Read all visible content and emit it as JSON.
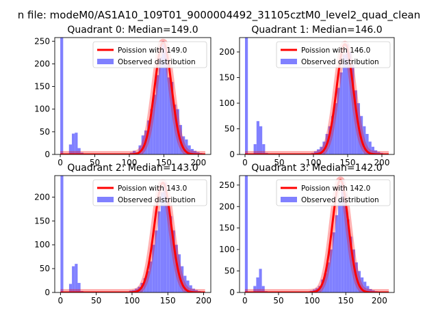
{
  "figure_title": "n file: modeM0/AS1A10_109T01_9000004492_31105cztM0_level2_quad_clean",
  "colors": {
    "hist": "#8080ff",
    "fit": "#ff0000",
    "fit_band": "#ffb3b3"
  },
  "chart_data": [
    {
      "type": "bar",
      "title": "Quadrant 0: Median=149.0",
      "xlabel": "",
      "ylabel": "",
      "xlim": [
        -8,
        218
      ],
      "ylim": [
        0,
        258
      ],
      "xticks": [
        0,
        50,
        100,
        150,
        200
      ],
      "yticks": [
        0,
        50,
        100,
        150,
        200,
        250
      ],
      "bin_width": 4.2,
      "legend": {
        "location": "top-right",
        "fit_label": "Poission with 149.0",
        "hist_label": "Observed distribution"
      },
      "poisson_mean": 149.0,
      "poisson_peak": 248,
      "histogram": [
        {
          "x": 0,
          "count": 258
        },
        {
          "x": 4.2,
          "count": 0
        },
        {
          "x": 8.4,
          "count": 0
        },
        {
          "x": 12.6,
          "count": 22
        },
        {
          "x": 16.8,
          "count": 46
        },
        {
          "x": 21.0,
          "count": 48
        },
        {
          "x": 25.2,
          "count": 14
        },
        {
          "x": 29.4,
          "count": 4
        },
        {
          "x": 100.8,
          "count": 4
        },
        {
          "x": 105.0,
          "count": 8
        },
        {
          "x": 109.2,
          "count": 5
        },
        {
          "x": 113.4,
          "count": 20
        },
        {
          "x": 117.6,
          "count": 42
        },
        {
          "x": 121.8,
          "count": 53
        },
        {
          "x": 126.0,
          "count": 75
        },
        {
          "x": 130.2,
          "count": 100
        },
        {
          "x": 134.4,
          "count": 132
        },
        {
          "x": 138.6,
          "count": 175
        },
        {
          "x": 142.8,
          "count": 215
        },
        {
          "x": 147.0,
          "count": 250
        },
        {
          "x": 151.2,
          "count": 230
        },
        {
          "x": 155.4,
          "count": 170
        },
        {
          "x": 159.6,
          "count": 160
        },
        {
          "x": 163.8,
          "count": 110
        },
        {
          "x": 168.0,
          "count": 100
        },
        {
          "x": 172.2,
          "count": 65
        },
        {
          "x": 176.4,
          "count": 40
        },
        {
          "x": 180.6,
          "count": 33
        },
        {
          "x": 184.8,
          "count": 20
        },
        {
          "x": 189.0,
          "count": 12
        },
        {
          "x": 193.2,
          "count": 8
        },
        {
          "x": 197.4,
          "count": 5
        },
        {
          "x": 201.6,
          "count": 3
        },
        {
          "x": 205.8,
          "count": 1
        }
      ]
    },
    {
      "type": "bar",
      "title": "Quadrant 1: Median=146.0",
      "xlabel": "",
      "ylabel": "",
      "xlim": [
        -8,
        218
      ],
      "ylim": [
        0,
        228
      ],
      "xticks": [
        0,
        50,
        100,
        150,
        200
      ],
      "yticks": [
        0,
        50,
        100,
        150,
        200
      ],
      "bin_width": 4.2,
      "legend": {
        "location": "top-right",
        "fit_label": "Poission with 146.0",
        "hist_label": "Observed distribution"
      },
      "poisson_mean": 146.0,
      "poisson_peak": 215,
      "histogram": [
        {
          "x": 0,
          "count": 228
        },
        {
          "x": 4.2,
          "count": 0
        },
        {
          "x": 8.4,
          "count": 0
        },
        {
          "x": 12.6,
          "count": 20
        },
        {
          "x": 16.8,
          "count": 65
        },
        {
          "x": 21.0,
          "count": 55
        },
        {
          "x": 25.2,
          "count": 20
        },
        {
          "x": 29.4,
          "count": 3
        },
        {
          "x": 96.6,
          "count": 3
        },
        {
          "x": 100.8,
          "count": 6
        },
        {
          "x": 105.0,
          "count": 10
        },
        {
          "x": 109.2,
          "count": 15
        },
        {
          "x": 113.4,
          "count": 25
        },
        {
          "x": 117.6,
          "count": 40
        },
        {
          "x": 121.8,
          "count": 55
        },
        {
          "x": 126.0,
          "count": 75
        },
        {
          "x": 130.2,
          "count": 100
        },
        {
          "x": 134.4,
          "count": 130
        },
        {
          "x": 138.6,
          "count": 160
        },
        {
          "x": 142.8,
          "count": 195
        },
        {
          "x": 147.0,
          "count": 215
        },
        {
          "x": 151.2,
          "count": 200
        },
        {
          "x": 155.4,
          "count": 175
        },
        {
          "x": 159.6,
          "count": 125
        },
        {
          "x": 163.8,
          "count": 100
        },
        {
          "x": 168.0,
          "count": 75
        },
        {
          "x": 172.2,
          "count": 55
        },
        {
          "x": 176.4,
          "count": 40
        },
        {
          "x": 180.6,
          "count": 25
        },
        {
          "x": 184.8,
          "count": 15
        },
        {
          "x": 189.0,
          "count": 8
        },
        {
          "x": 193.2,
          "count": 5
        },
        {
          "x": 197.4,
          "count": 3
        },
        {
          "x": 201.6,
          "count": 2
        }
      ]
    },
    {
      "type": "bar",
      "title": "Quadrant 2: Median=143.0",
      "xlabel": "",
      "ylabel": "",
      "xlim": [
        -8,
        210
      ],
      "ylim": [
        0,
        245
      ],
      "xticks": [
        0,
        50,
        100,
        150,
        200
      ],
      "yticks": [
        0,
        50,
        100,
        150,
        200
      ],
      "bin_width": 4.0,
      "legend": {
        "location": "top-right",
        "fit_label": "Poission with 143.0",
        "hist_label": "Observed distribution"
      },
      "poisson_mean": 143.0,
      "poisson_peak": 230,
      "histogram": [
        {
          "x": 0,
          "count": 245
        },
        {
          "x": 4,
          "count": 0
        },
        {
          "x": 8,
          "count": 0
        },
        {
          "x": 12,
          "count": 18
        },
        {
          "x": 16,
          "count": 55
        },
        {
          "x": 20,
          "count": 60
        },
        {
          "x": 24,
          "count": 20
        },
        {
          "x": 28,
          "count": 3
        },
        {
          "x": 96,
          "count": 4
        },
        {
          "x": 100,
          "count": 5
        },
        {
          "x": 104,
          "count": 8
        },
        {
          "x": 108,
          "count": 12
        },
        {
          "x": 112,
          "count": 20
        },
        {
          "x": 116,
          "count": 30
        },
        {
          "x": 120,
          "count": 45
        },
        {
          "x": 124,
          "count": 65
        },
        {
          "x": 128,
          "count": 100
        },
        {
          "x": 132,
          "count": 130
        },
        {
          "x": 136,
          "count": 170
        },
        {
          "x": 140,
          "count": 210
        },
        {
          "x": 144,
          "count": 230
        },
        {
          "x": 148,
          "count": 200
        },
        {
          "x": 152,
          "count": 160
        },
        {
          "x": 156,
          "count": 130
        },
        {
          "x": 160,
          "count": 100
        },
        {
          "x": 164,
          "count": 80
        },
        {
          "x": 168,
          "count": 55
        },
        {
          "x": 172,
          "count": 35
        },
        {
          "x": 176,
          "count": 25
        },
        {
          "x": 180,
          "count": 15
        },
        {
          "x": 184,
          "count": 8
        },
        {
          "x": 188,
          "count": 5
        },
        {
          "x": 192,
          "count": 3
        },
        {
          "x": 196,
          "count": 2
        }
      ]
    },
    {
      "type": "bar",
      "title": "Quadrant 3: Median=142.0",
      "xlabel": "",
      "ylabel": "",
      "xlim": [
        -8,
        222
      ],
      "ylim": [
        0,
        272
      ],
      "xticks": [
        0,
        50,
        100,
        150,
        200
      ],
      "yticks": [
        0,
        50,
        100,
        150,
        200,
        250
      ],
      "bin_width": 4.2,
      "legend": {
        "location": "top-right",
        "fit_label": "Poission with 142.0",
        "hist_label": "Observed distribution"
      },
      "poisson_mean": 142.0,
      "poisson_peak": 262,
      "histogram": [
        {
          "x": 0,
          "count": 272
        },
        {
          "x": 4.2,
          "count": 0
        },
        {
          "x": 8.4,
          "count": 0
        },
        {
          "x": 12.6,
          "count": 15
        },
        {
          "x": 16.8,
          "count": 35
        },
        {
          "x": 21.0,
          "count": 55
        },
        {
          "x": 25.2,
          "count": 15
        },
        {
          "x": 29.4,
          "count": 3
        },
        {
          "x": 96.6,
          "count": 4
        },
        {
          "x": 100.8,
          "count": 7
        },
        {
          "x": 105.0,
          "count": 10
        },
        {
          "x": 109.2,
          "count": 15
        },
        {
          "x": 113.4,
          "count": 30
        },
        {
          "x": 117.6,
          "count": 45
        },
        {
          "x": 121.8,
          "count": 70
        },
        {
          "x": 126.0,
          "count": 100
        },
        {
          "x": 130.2,
          "count": 140
        },
        {
          "x": 134.4,
          "count": 180
        },
        {
          "x": 138.6,
          "count": 215
        },
        {
          "x": 142.8,
          "count": 260
        },
        {
          "x": 147.0,
          "count": 230
        },
        {
          "x": 151.2,
          "count": 170
        },
        {
          "x": 155.4,
          "count": 130
        },
        {
          "x": 159.6,
          "count": 100
        },
        {
          "x": 163.8,
          "count": 70
        },
        {
          "x": 168.0,
          "count": 50
        },
        {
          "x": 172.2,
          "count": 35
        },
        {
          "x": 176.4,
          "count": 25
        },
        {
          "x": 180.6,
          "count": 15
        },
        {
          "x": 184.8,
          "count": 8
        },
        {
          "x": 189.0,
          "count": 5
        },
        {
          "x": 193.2,
          "count": 3
        },
        {
          "x": 197.4,
          "count": 2
        },
        {
          "x": 201.6,
          "count": 1
        }
      ]
    }
  ]
}
